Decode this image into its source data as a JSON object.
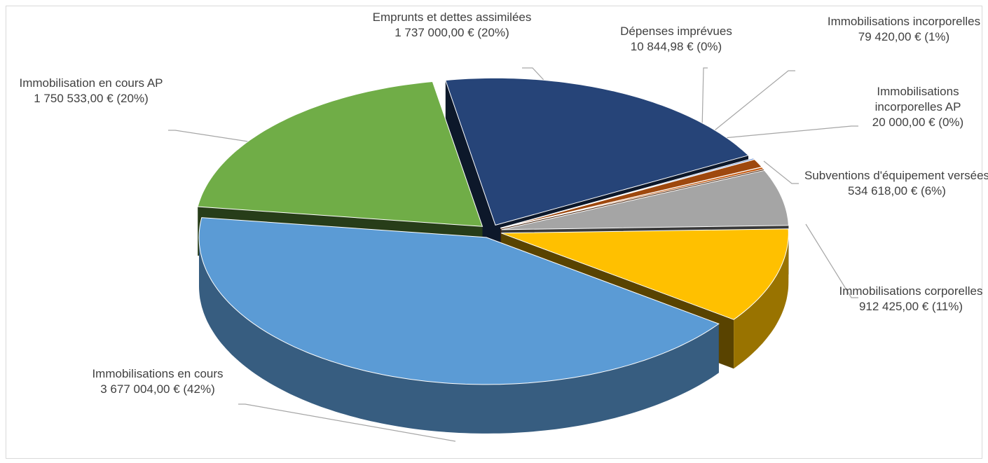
{
  "chart_data": {
    "type": "pie3d",
    "categories": [
      "Emprunts et dettes assimilées",
      "Dépenses imprévues",
      "Immobilisations incorporelles",
      "Immobilisations incorporelles AP",
      "Subventions d'équipement versées",
      "Immobilisations corporelles",
      "Immobilisations en cours",
      "Immobilisation en cours AP"
    ],
    "values": [
      1737000,
      10844.98,
      79420,
      20000,
      534618,
      912425,
      3677004,
      1750533
    ],
    "value_labels": [
      "1 737 000,00 € (20%)",
      "10 844,98 € (0%)",
      "79 420,00 € (1%)",
      "20 000,00 € (0%)",
      "534 618,00 € (6%)",
      "912 425,00 € (11%)",
      "3 677 004,00 € (42%)",
      "1 750 533,00 € (20%)"
    ],
    "colors": [
      "#264478",
      "#4472c4",
      "#9e480e",
      "#c55a11",
      "#a5a5a5",
      "#ffc000",
      "#5b9bd5",
      "#70ad47"
    ]
  }
}
